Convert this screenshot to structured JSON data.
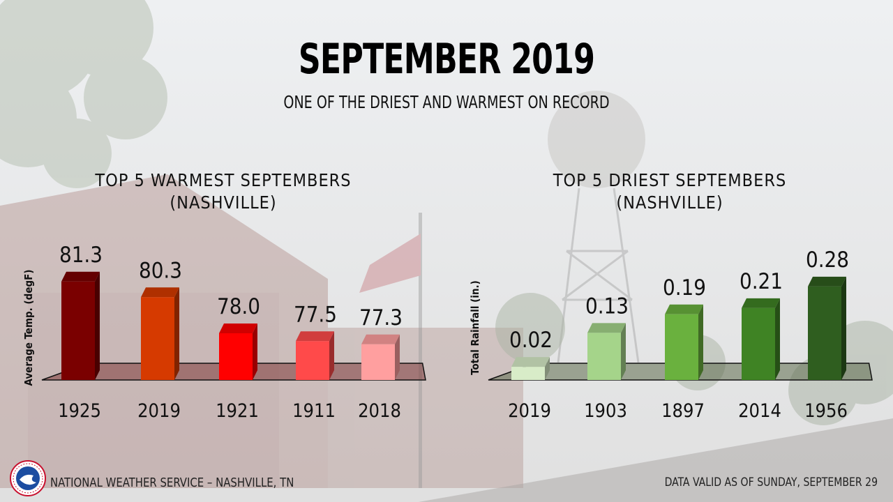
{
  "title": "SEPTEMBER 2019",
  "subtitle": "ONE OF THE DRIEST AND WARMEST ON RECORD",
  "footer": {
    "left": "NATIONAL WEATHER SERVICE – NASHVILLE, TN",
    "right": "DATA VALID AS OF SUNDAY, SEPTEMBER 29",
    "logo_text": "NATIONAL WEATHER SERVICE"
  },
  "chart_data": [
    {
      "type": "bar",
      "title": "TOP 5 WARMEST SEPTEMBERS",
      "subtitle": "(NASHVILLE)",
      "ylabel": "Average Temp. (degF)",
      "categories": [
        "1925",
        "2019",
        "1921",
        "1911",
        "2018"
      ],
      "values": [
        81.3,
        80.3,
        78.0,
        77.5,
        77.3
      ],
      "value_labels": [
        "81.3",
        "80.3",
        "78.0",
        "77.5",
        "77.3"
      ],
      "colors": [
        "#7a0000",
        "#d63a00",
        "#ff0000",
        "#ff4a4a",
        "#ff9f9f"
      ],
      "ylim": [
        76.0,
        81.6
      ]
    },
    {
      "type": "bar",
      "title": "TOP 5 DRIEST SEPTEMBERS",
      "subtitle": "(NASHVILLE)",
      "ylabel": "Total Rainfall (in.)",
      "categories": [
        "2019",
        "1903",
        "1897",
        "2014",
        "1956"
      ],
      "values": [
        0.02,
        0.13,
        0.19,
        0.21,
        0.28
      ],
      "value_labels": [
        "0.02",
        "0.13",
        "0.19",
        "0.21",
        "0.28"
      ],
      "colors": [
        "#d8ecc8",
        "#a5d48a",
        "#6ab13e",
        "#3f8324",
        "#2f5e1f"
      ],
      "ylim": [
        0,
        0.3
      ]
    }
  ]
}
